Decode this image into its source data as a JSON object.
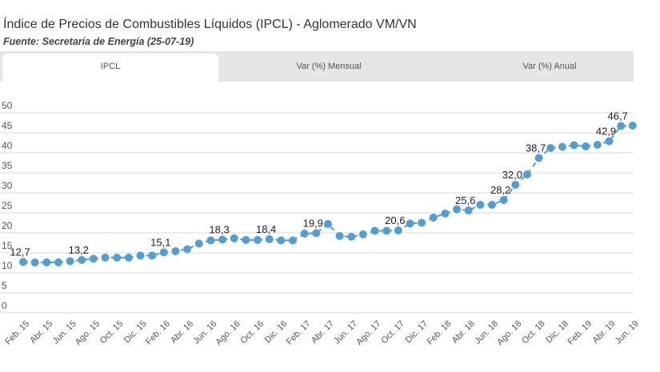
{
  "header": {
    "title": "Índice de Precios de Combustibles Líquidos (IPCL) - Aglomerado VM/VN",
    "subtitle": "Fuente: Secretaría de Energía (25-07-19)"
  },
  "tabs": [
    {
      "label": "IPCL",
      "active": true
    },
    {
      "label": "Var (%) Mensual",
      "active": false
    },
    {
      "label": "Var (%) Anual",
      "active": false
    }
  ],
  "colors": {
    "series": "#4f9fd6",
    "grid": "#e0e0e0",
    "tabbar": "#e6e6e6"
  },
  "chart_data": {
    "type": "line",
    "title": "Índice de Precios de Combustibles Líquidos (IPCL) - Aglomerado VM/VN",
    "xlabel": "",
    "ylabel": "",
    "ylim": [
      0,
      50
    ],
    "yticks": [
      "0",
      "5",
      "10",
      "15",
      "20",
      "25",
      "30",
      "35",
      "40",
      "45",
      "50"
    ],
    "grid": true,
    "legend": "none",
    "x_tick_labels": [
      "Feb. 15",
      "Abr. 15",
      "Jun. 15",
      "Ago. 15",
      "Oct. 15",
      "Dic. 15",
      "Feb. 16",
      "Abr. 16",
      "Jun. 16",
      "Ago. 16",
      "Oct. 16",
      "Dic. 16",
      "Feb. 17",
      "Abr. 17",
      "Jun. 17",
      "Ago. 17",
      "Oct. 17",
      "Dic. 17",
      "Feb. 18",
      "Abr. 18",
      "Jun. 18",
      "Ago. 18",
      "Oct. 18",
      "Dic. 18",
      "Feb. 19",
      "Abr. 19",
      "Jun. 19"
    ],
    "series": [
      {
        "name": "IPCL",
        "values": [
          12.7,
          12.6,
          12.6,
          12.6,
          12.9,
          13.2,
          13.5,
          13.8,
          13.8,
          13.8,
          14.3,
          14.3,
          15.1,
          15.4,
          15.9,
          17.3,
          18.1,
          18.3,
          18.6,
          18.2,
          18.2,
          18.4,
          18.1,
          18.1,
          19.8,
          19.9,
          22.2,
          19.2,
          19.0,
          19.6,
          20.5,
          20.5,
          20.6,
          22.3,
          22.5,
          23.8,
          24.8,
          25.9,
          25.6,
          27.0,
          27.0,
          28.2,
          32.0,
          34.6,
          38.7,
          41.2,
          41.5,
          41.9,
          41.6,
          42.0,
          42.9,
          46.7,
          46.8
        ]
      }
    ],
    "data_labels": [
      {
        "index": 0,
        "text": "12,7"
      },
      {
        "index": 5,
        "text": "13,2"
      },
      {
        "index": 12,
        "text": "15,1"
      },
      {
        "index": 17,
        "text": "18,3"
      },
      {
        "index": 21,
        "text": "18,4"
      },
      {
        "index": 25,
        "text": "19,9"
      },
      {
        "index": 32,
        "text": "20,6"
      },
      {
        "index": 38,
        "text": "25,6"
      },
      {
        "index": 41,
        "text": "28,2"
      },
      {
        "index": 42,
        "text": "32,0"
      },
      {
        "index": 44,
        "text": "38,7"
      },
      {
        "index": 50,
        "text": "42,9"
      },
      {
        "index": 51,
        "text": "46,7"
      }
    ]
  }
}
